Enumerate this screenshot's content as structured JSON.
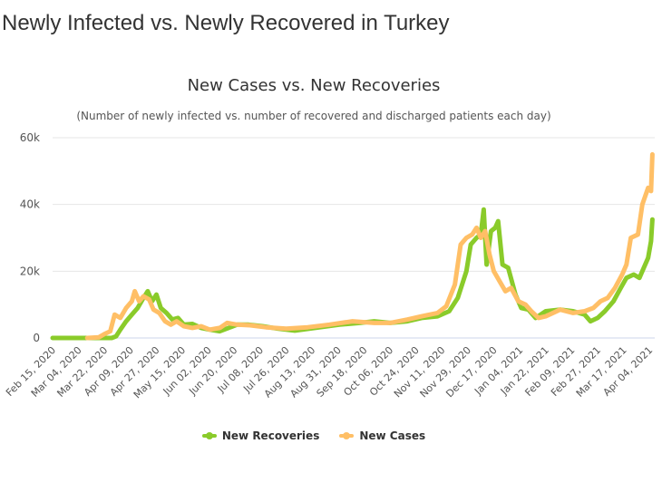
{
  "page_title": "Newly Infected vs. Newly Recovered in Turkey",
  "chart_data": {
    "type": "line",
    "title": "New Cases vs. New Recoveries",
    "subtitle": "(Number of newly infected vs. number of recovered and discharged patients each day)",
    "ylim": [
      0,
      60000
    ],
    "y_ticks": [
      {
        "v": 0,
        "label": "0"
      },
      {
        "v": 20000,
        "label": "20k"
      },
      {
        "v": 40000,
        "label": "40k"
      },
      {
        "v": 60000,
        "label": "60k"
      }
    ],
    "x_ticks": [
      "Feb 15, 2020",
      "Mar 04, 2020",
      "Mar 22, 2020",
      "Apr 09, 2020",
      "Apr 27, 2020",
      "May 15, 2020",
      "Jun 02, 2020",
      "Jun 20, 2020",
      "Jul 08, 2020",
      "Jul 26, 2020",
      "Aug 13, 2020",
      "Aug 31, 2020",
      "Sep 18, 2020",
      "Oct 06, 2020",
      "Oct 24, 2020",
      "Nov 11, 2020",
      "Nov 29, 2020",
      "Dec 17, 2020",
      "Jan 04, 2021",
      "Jan 22, 2021",
      "Feb 09, 2021",
      "Feb 27, 2021",
      "Mar 17, 2021",
      "Apr 04, 2021"
    ],
    "grid": true,
    "legend_placement": "bottom",
    "series": [
      {
        "name": "New Recoveries",
        "color": "#8acb2a",
        "points": [
          [
            "2020-02-15",
            0
          ],
          [
            "2020-03-27",
            0
          ],
          [
            "2020-03-30",
            500
          ],
          [
            "2020-04-02",
            2500
          ],
          [
            "2020-04-06",
            5000
          ],
          [
            "2020-04-10",
            7000
          ],
          [
            "2020-04-14",
            9000
          ],
          [
            "2020-04-18",
            12000
          ],
          [
            "2020-04-21",
            14000
          ],
          [
            "2020-04-24",
            11000
          ],
          [
            "2020-04-27",
            13000
          ],
          [
            "2020-04-30",
            9000
          ],
          [
            "2020-05-04",
            7500
          ],
          [
            "2020-05-08",
            5500
          ],
          [
            "2020-05-12",
            6000
          ],
          [
            "2020-05-16",
            4000
          ],
          [
            "2020-05-22",
            4200
          ],
          [
            "2020-05-28",
            3000
          ],
          [
            "2020-06-03",
            2500
          ],
          [
            "2020-06-10",
            2000
          ],
          [
            "2020-06-16",
            3000
          ],
          [
            "2020-06-22",
            4000
          ],
          [
            "2020-06-30",
            4000
          ],
          [
            "2020-07-10",
            3500
          ],
          [
            "2020-07-20",
            2800
          ],
          [
            "2020-08-01",
            2200
          ],
          [
            "2020-08-15",
            3000
          ],
          [
            "2020-09-01",
            4000
          ],
          [
            "2020-09-15",
            4500
          ],
          [
            "2020-09-25",
            5000
          ],
          [
            "2020-10-06",
            4500
          ],
          [
            "2020-10-18",
            5000
          ],
          [
            "2020-10-28",
            6000
          ],
          [
            "2020-11-08",
            6500
          ],
          [
            "2020-11-16",
            8000
          ],
          [
            "2020-11-22",
            12000
          ],
          [
            "2020-11-28",
            20000
          ],
          [
            "2020-12-01",
            28000
          ],
          [
            "2020-12-05",
            30000
          ],
          [
            "2020-12-08",
            31000
          ],
          [
            "2020-12-10",
            38500
          ],
          [
            "2020-12-12",
            22000
          ],
          [
            "2020-12-15",
            32000
          ],
          [
            "2020-12-18",
            33000
          ],
          [
            "2020-12-20",
            35000
          ],
          [
            "2020-12-23",
            22000
          ],
          [
            "2020-12-27",
            21000
          ],
          [
            "2021-01-01",
            13000
          ],
          [
            "2021-01-05",
            9000
          ],
          [
            "2021-01-10",
            8500
          ],
          [
            "2021-01-15",
            6000
          ],
          [
            "2021-01-22",
            8000
          ],
          [
            "2021-02-01",
            8500
          ],
          [
            "2021-02-10",
            8000
          ],
          [
            "2021-02-18",
            7000
          ],
          [
            "2021-02-22",
            5000
          ],
          [
            "2021-02-27",
            6000
          ],
          [
            "2021-03-04",
            8000
          ],
          [
            "2021-03-10",
            11000
          ],
          [
            "2021-03-15",
            15000
          ],
          [
            "2021-03-19",
            18000
          ],
          [
            "2021-03-24",
            19000
          ],
          [
            "2021-03-28",
            18000
          ],
          [
            "2021-03-31",
            21000
          ],
          [
            "2021-04-03",
            24000
          ],
          [
            "2021-04-05",
            29000
          ],
          [
            "2021-04-06",
            35500
          ]
        ]
      },
      {
        "name": "New Cases",
        "color": "#ffbf66",
        "points": [
          [
            "2020-03-10",
            0
          ],
          [
            "2020-03-18",
            200
          ],
          [
            "2020-03-22",
            1200
          ],
          [
            "2020-03-26",
            2000
          ],
          [
            "2020-03-29",
            7000
          ],
          [
            "2020-04-02",
            6000
          ],
          [
            "2020-04-06",
            9000
          ],
          [
            "2020-04-10",
            11000
          ],
          [
            "2020-04-12",
            14000
          ],
          [
            "2020-04-15",
            11000
          ],
          [
            "2020-04-18",
            12500
          ],
          [
            "2020-04-22",
            11500
          ],
          [
            "2020-04-25",
            8500
          ],
          [
            "2020-04-29",
            7500
          ],
          [
            "2020-05-03",
            5000
          ],
          [
            "2020-05-07",
            4000
          ],
          [
            "2020-05-11",
            5000
          ],
          [
            "2020-05-16",
            3500
          ],
          [
            "2020-05-22",
            3000
          ],
          [
            "2020-05-28",
            3500
          ],
          [
            "2020-06-03",
            2500
          ],
          [
            "2020-06-10",
            3000
          ],
          [
            "2020-06-15",
            4500
          ],
          [
            "2020-06-22",
            4000
          ],
          [
            "2020-07-01",
            3800
          ],
          [
            "2020-07-12",
            3200
          ],
          [
            "2020-07-26",
            2800
          ],
          [
            "2020-08-10",
            3200
          ],
          [
            "2020-08-25",
            4000
          ],
          [
            "2020-09-10",
            5000
          ],
          [
            "2020-09-25",
            4500
          ],
          [
            "2020-10-06",
            4500
          ],
          [
            "2020-10-18",
            5500
          ],
          [
            "2020-10-28",
            6500
          ],
          [
            "2020-11-08",
            7500
          ],
          [
            "2020-11-14",
            9500
          ],
          [
            "2020-11-20",
            16000
          ],
          [
            "2020-11-24",
            28000
          ],
          [
            "2020-11-28",
            30000
          ],
          [
            "2020-12-02",
            31000
          ],
          [
            "2020-12-05",
            33000
          ],
          [
            "2020-12-08",
            30000
          ],
          [
            "2020-12-11",
            32000
          ],
          [
            "2020-12-14",
            25000
          ],
          [
            "2020-12-17",
            20000
          ],
          [
            "2020-12-21",
            17000
          ],
          [
            "2020-12-25",
            14000
          ],
          [
            "2020-12-29",
            15000
          ],
          [
            "2021-01-03",
            11000
          ],
          [
            "2021-01-08",
            10000
          ],
          [
            "2021-01-12",
            8000
          ],
          [
            "2021-01-17",
            6000
          ],
          [
            "2021-01-22",
            6500
          ],
          [
            "2021-02-01",
            8500
          ],
          [
            "2021-02-10",
            7500
          ],
          [
            "2021-02-18",
            8000
          ],
          [
            "2021-02-24",
            9000
          ],
          [
            "2021-03-01",
            11000
          ],
          [
            "2021-03-06",
            12000
          ],
          [
            "2021-03-11",
            15000
          ],
          [
            "2021-03-16",
            19000
          ],
          [
            "2021-03-19",
            22000
          ],
          [
            "2021-03-22",
            30000
          ],
          [
            "2021-03-27",
            31000
          ],
          [
            "2021-03-30",
            40000
          ],
          [
            "2021-04-03",
            45000
          ],
          [
            "2021-04-05",
            44000
          ],
          [
            "2021-04-06",
            55000
          ]
        ]
      }
    ]
  }
}
